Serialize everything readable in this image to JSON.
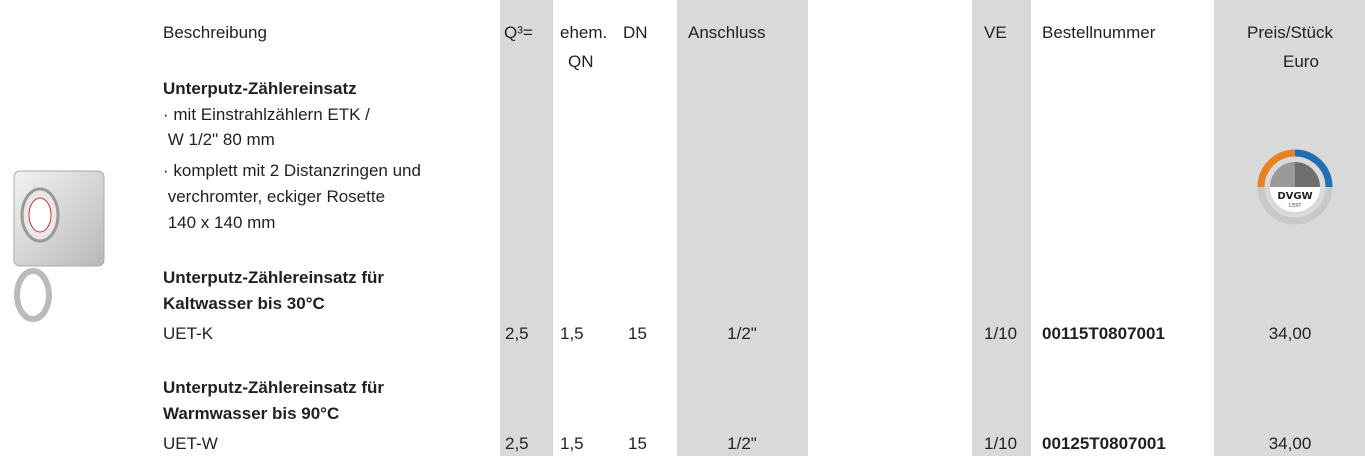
{
  "header": {
    "description": "Beschreibung",
    "q3": "Q³=",
    "qn": [
      "ehem.",
      "QN"
    ],
    "dn": "DN",
    "connection": "Anschluss",
    "ve": "VE",
    "order_number": "Bestellnummer",
    "price": [
      "Preis/Stück",
      "Euro"
    ]
  },
  "product": {
    "title": "Unterputz-Zählereinsatz",
    "lines": [
      "· mit Einstrahlzählern ETK /",
      " W 1/2\" 80 mm",
      "· komplett mit 2 Distanzringen und",
      " verchromter, eckiger Rosette",
      " 140 x 140 mm"
    ]
  },
  "badge": {
    "label": "DVGW",
    "sublabel": "CERT"
  },
  "rows": [
    {
      "name": [
        "Unterputz-Zählereinsatz für",
        "Kaltwasser bis 30°C"
      ],
      "code": "UET-K",
      "q3": "2,5",
      "qn": "1,5",
      "dn": "15",
      "connection": "1/2\"",
      "ve": "1/10",
      "order_number": "00115T0807001",
      "price": "34,00"
    },
    {
      "name": [
        "Unterputz-Zählereinsatz für",
        "Warmwasser bis 90°C"
      ],
      "code": "UET-W",
      "q3": "2,5",
      "qn": "1,5",
      "dn": "15",
      "connection": "1/2\"",
      "ve": "1/10",
      "order_number": "00125T0807001",
      "price": "34,00"
    }
  ]
}
